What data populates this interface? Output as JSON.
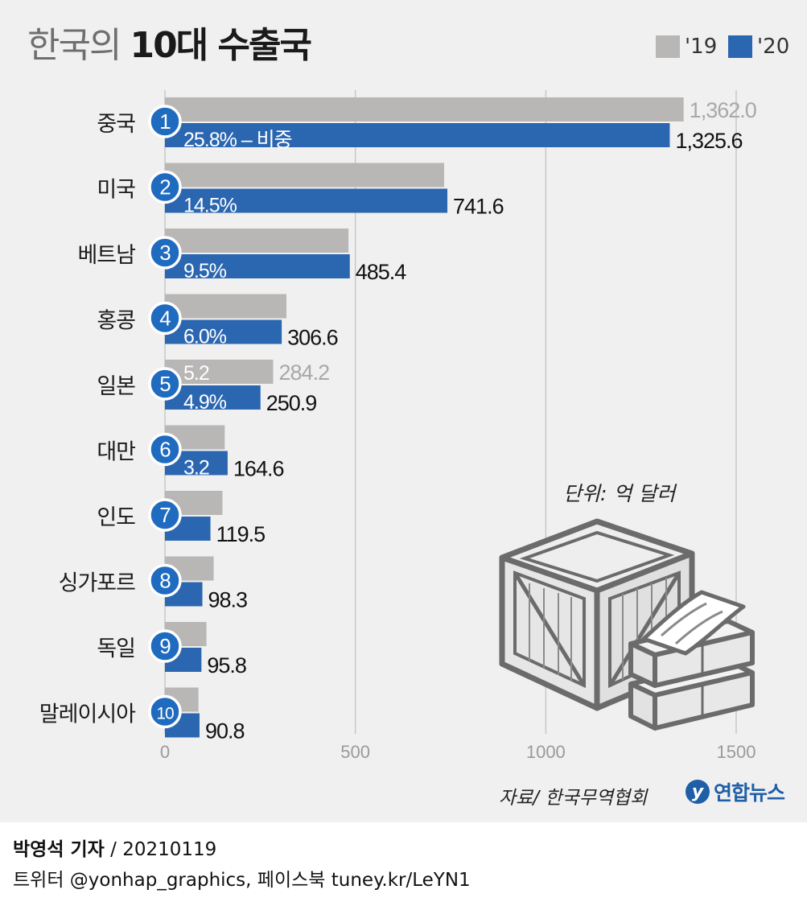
{
  "title": {
    "light": "한국의",
    "bold": "10대 수출국"
  },
  "legend": [
    {
      "label": "'19",
      "color": "#b9b6b6"
    },
    {
      "label": "'20",
      "color": "#2b66b0"
    }
  ],
  "unit": "단위: 억 달러",
  "source": "자료/ 한국무역협회",
  "logo": {
    "mark": "y",
    "text": "연합뉴스"
  },
  "credit": {
    "author": "박영석 기자",
    "separator": "/",
    "date": "20210119"
  },
  "social": "트위터 @yonhap_graphics, 페이스북 tuney.kr/LeYN1",
  "colors": {
    "bar2019": "#b9b6b6",
    "bar2020": "#2b66b0",
    "badge": "#1f6bbf",
    "grid": "#c8c8c8",
    "background": "#f0f0f0"
  },
  "chart_data": {
    "type": "bar",
    "orientation": "horizontal",
    "title": "한국의 10대 수출국",
    "unit": "단위: 억 달러",
    "xlim": [
      0,
      1500
    ],
    "xticks": [
      "0",
      "500",
      "1000",
      "1500"
    ],
    "categories": [
      "중국",
      "미국",
      "베트남",
      "홍콩",
      "일본",
      "대만",
      "인도",
      "싱가포르",
      "독일",
      "말레이시아"
    ],
    "ranks": [
      "1",
      "2",
      "3",
      "4",
      "5",
      "6",
      "7",
      "8",
      "9",
      "10"
    ],
    "series": [
      {
        "name": "'19",
        "values": [
          1362.0,
          733,
          482,
          319,
          284.2,
          157,
          151,
          128,
          109,
          88
        ]
      },
      {
        "name": "'20",
        "values": [
          1325.6,
          741.6,
          485.4,
          306.6,
          250.9,
          164.6,
          119.5,
          98.3,
          95.8,
          90.8
        ]
      }
    ],
    "labels_2019": {
      "0": "1,362.0",
      "4": "284.2"
    },
    "labels_2020": [
      "1,325.6",
      "741.6",
      "485.4",
      "306.6",
      "250.9",
      "164.6",
      "119.5",
      "98.3",
      "95.8",
      "90.8"
    ],
    "shares_2020": [
      "25.8% – 비중",
      "14.5%",
      "9.5%",
      "6.0%",
      "4.9%",
      "3.2",
      "",
      "",
      "",
      ""
    ],
    "share_2019": {
      "4": "5.2"
    }
  }
}
